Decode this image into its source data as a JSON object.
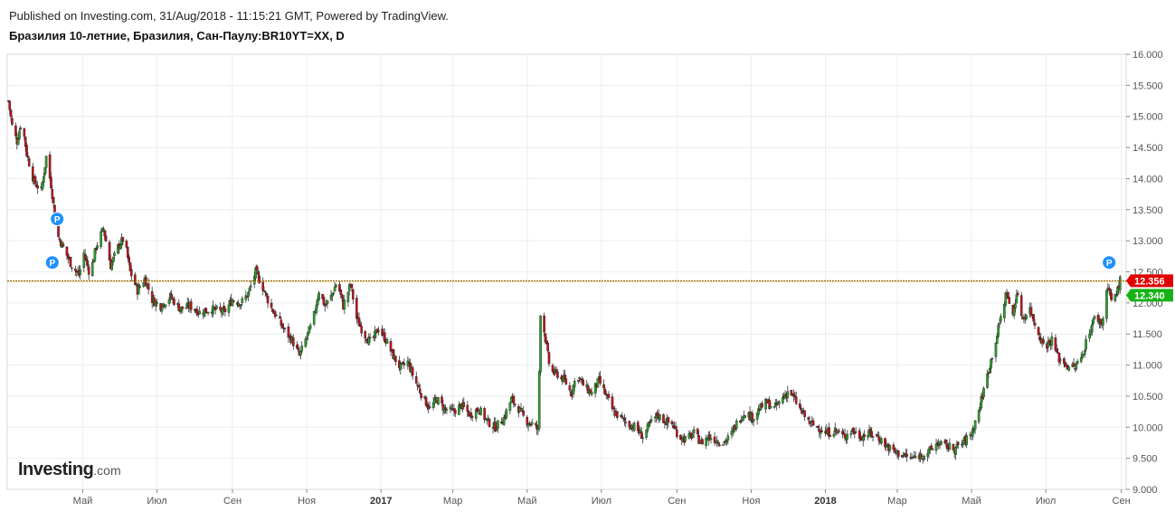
{
  "header": {
    "published": "Published on Investing.com, 31/Aug/2018 - 11:15:21 GMT, Powered by TradingView.",
    "symbol": "Бразилия 10-летние, Бразилия, Сан-Паулу:BR10YT=XX, D"
  },
  "logo": {
    "main": "Investing",
    "suffix": ".com"
  },
  "colors": {
    "up": "#2ca02c",
    "down": "#c0131e",
    "wick": "#333333",
    "grid": "#eeeeee",
    "last_price_bg": "#e00000",
    "ref_price_bg": "#16b216",
    "marker": "#1e90ff",
    "hline": "#8a5a00"
  },
  "chart_data": {
    "type": "candlestick",
    "title": "",
    "xlabel": "",
    "ylabel": "",
    "ylim": [
      9.0,
      16.0
    ],
    "y_ticks": [
      "16.000",
      "15.500",
      "15.000",
      "14.500",
      "14.000",
      "13.500",
      "13.000",
      "12.500",
      "12.000",
      "11.500",
      "11.000",
      "10.500",
      "10.000",
      "9.500",
      "9.000"
    ],
    "x_ticks": [
      {
        "label": "Май",
        "date": "2016-05-01"
      },
      {
        "label": "Июл",
        "date": "2016-07-01"
      },
      {
        "label": "Сен",
        "date": "2016-09-01"
      },
      {
        "label": "Ноя",
        "date": "2016-11-01"
      },
      {
        "label": "2017",
        "date": "2017-01-01",
        "bold": true
      },
      {
        "label": "Мар",
        "date": "2017-03-01"
      },
      {
        "label": "Май",
        "date": "2017-05-01"
      },
      {
        "label": "Июл",
        "date": "2017-07-01"
      },
      {
        "label": "Сен",
        "date": "2017-09-01"
      },
      {
        "label": "Ноя",
        "date": "2017-11-01"
      },
      {
        "label": "2018",
        "date": "2018-01-01",
        "bold": true
      },
      {
        "label": "Мар",
        "date": "2018-03-01"
      },
      {
        "label": "Май",
        "date": "2018-05-01"
      },
      {
        "label": "Июл",
        "date": "2018-07-01"
      },
      {
        "label": "Сен",
        "date": "2018-09-01"
      }
    ],
    "x_range": [
      "2016-02-29",
      "2018-09-05"
    ],
    "last_price": {
      "value": 12.356,
      "label": "12.356"
    },
    "ref_price": {
      "value": 12.34,
      "label": "12.340"
    },
    "markers": [
      {
        "date": "2016-04-10",
        "value": 13.35,
        "label": "P"
      },
      {
        "date": "2016-04-06",
        "value": 12.65,
        "label": "P"
      },
      {
        "date": "2018-08-22",
        "value": 12.65,
        "label": "P"
      }
    ],
    "path": [
      [
        "2016-03-01",
        15.25
      ],
      [
        "2016-03-04",
        14.85
      ],
      [
        "2016-03-08",
        14.6
      ],
      [
        "2016-03-12",
        14.95
      ],
      [
        "2016-03-16",
        14.4
      ],
      [
        "2016-03-22",
        13.95
      ],
      [
        "2016-03-28",
        13.8
      ],
      [
        "2016-04-01",
        14.35
      ],
      [
        "2016-04-05",
        13.9
      ],
      [
        "2016-04-10",
        13.1
      ],
      [
        "2016-04-16",
        12.85
      ],
      [
        "2016-04-22",
        12.6
      ],
      [
        "2016-04-28",
        12.45
      ],
      [
        "2016-05-02",
        12.8
      ],
      [
        "2016-05-07",
        12.45
      ],
      [
        "2016-05-12",
        12.9
      ],
      [
        "2016-05-18",
        13.2
      ],
      [
        "2016-05-24",
        12.6
      ],
      [
        "2016-05-30",
        12.9
      ],
      [
        "2016-06-04",
        13.05
      ],
      [
        "2016-06-09",
        12.5
      ],
      [
        "2016-06-15",
        12.2
      ],
      [
        "2016-06-21",
        12.4
      ],
      [
        "2016-06-27",
        12.05
      ],
      [
        "2016-07-04",
        11.95
      ],
      [
        "2016-07-12",
        12.1
      ],
      [
        "2016-07-20",
        11.9
      ],
      [
        "2016-07-28",
        11.95
      ],
      [
        "2016-08-05",
        11.85
      ],
      [
        "2016-08-15",
        11.9
      ],
      [
        "2016-08-25",
        11.85
      ],
      [
        "2016-09-01",
        12.05
      ],
      [
        "2016-09-08",
        12.0
      ],
      [
        "2016-09-14",
        12.15
      ],
      [
        "2016-09-20",
        12.5
      ],
      [
        "2016-09-26",
        12.25
      ],
      [
        "2016-10-02",
        11.95
      ],
      [
        "2016-10-08",
        11.75
      ],
      [
        "2016-10-14",
        11.55
      ],
      [
        "2016-10-20",
        11.4
      ],
      [
        "2016-10-26",
        11.15
      ],
      [
        "2016-11-01",
        11.45
      ],
      [
        "2016-11-06",
        11.7
      ],
      [
        "2016-11-11",
        12.2
      ],
      [
        "2016-11-16",
        11.95
      ],
      [
        "2016-11-21",
        12.1
      ],
      [
        "2016-11-26",
        12.35
      ],
      [
        "2016-12-01",
        11.95
      ],
      [
        "2016-12-07",
        12.3
      ],
      [
        "2016-12-12",
        11.75
      ],
      [
        "2016-12-18",
        11.5
      ],
      [
        "2016-12-24",
        11.35
      ],
      [
        "2016-12-30",
        11.6
      ],
      [
        "2017-01-05",
        11.4
      ],
      [
        "2017-01-11",
        11.15
      ],
      [
        "2017-01-17",
        10.95
      ],
      [
        "2017-01-23",
        11.05
      ],
      [
        "2017-01-29",
        10.75
      ],
      [
        "2017-02-04",
        10.5
      ],
      [
        "2017-02-10",
        10.3
      ],
      [
        "2017-02-16",
        10.45
      ],
      [
        "2017-02-22",
        10.3
      ],
      [
        "2017-03-01",
        10.25
      ],
      [
        "2017-03-08",
        10.35
      ],
      [
        "2017-03-15",
        10.2
      ],
      [
        "2017-03-22",
        10.3
      ],
      [
        "2017-03-29",
        10.1
      ],
      [
        "2017-04-05",
        10.0
      ],
      [
        "2017-04-12",
        10.15
      ],
      [
        "2017-04-18",
        10.45
      ],
      [
        "2017-04-24",
        10.3
      ],
      [
        "2017-04-30",
        10.1
      ],
      [
        "2017-05-06",
        10.05
      ],
      [
        "2017-05-10",
        9.95
      ],
      [
        "2017-05-12",
        11.85
      ],
      [
        "2017-05-15",
        11.55
      ],
      [
        "2017-05-20",
        10.9
      ],
      [
        "2017-05-26",
        10.85
      ],
      [
        "2017-06-01",
        10.75
      ],
      [
        "2017-06-06",
        10.55
      ],
      [
        "2017-06-11",
        10.85
      ],
      [
        "2017-06-17",
        10.65
      ],
      [
        "2017-06-23",
        10.55
      ],
      [
        "2017-06-29",
        10.75
      ],
      [
        "2017-07-05",
        10.5
      ],
      [
        "2017-07-11",
        10.25
      ],
      [
        "2017-07-17",
        10.15
      ],
      [
        "2017-07-23",
        10.05
      ],
      [
        "2017-07-29",
        10.0
      ],
      [
        "2017-08-04",
        9.85
      ],
      [
        "2017-08-10",
        10.05
      ],
      [
        "2017-08-16",
        10.2
      ],
      [
        "2017-08-22",
        10.1
      ],
      [
        "2017-08-28",
        10.05
      ],
      [
        "2017-09-03",
        9.85
      ],
      [
        "2017-09-09",
        9.8
      ],
      [
        "2017-09-15",
        9.9
      ],
      [
        "2017-09-21",
        9.75
      ],
      [
        "2017-09-27",
        9.85
      ],
      [
        "2017-10-03",
        9.8
      ],
      [
        "2017-10-09",
        9.75
      ],
      [
        "2017-10-15",
        9.85
      ],
      [
        "2017-10-21",
        10.1
      ],
      [
        "2017-10-27",
        10.25
      ],
      [
        "2017-11-02",
        10.15
      ],
      [
        "2017-11-08",
        10.3
      ],
      [
        "2017-11-14",
        10.4
      ],
      [
        "2017-11-20",
        10.3
      ],
      [
        "2017-11-26",
        10.45
      ],
      [
        "2017-12-02",
        10.6
      ],
      [
        "2017-12-08",
        10.4
      ],
      [
        "2017-12-14",
        10.2
      ],
      [
        "2017-12-20",
        10.05
      ],
      [
        "2017-12-26",
        10.0
      ],
      [
        "2018-01-02",
        9.9
      ],
      [
        "2018-01-09",
        9.95
      ],
      [
        "2018-01-16",
        9.85
      ],
      [
        "2018-01-23",
        9.95
      ],
      [
        "2018-01-30",
        9.85
      ],
      [
        "2018-02-06",
        9.9
      ],
      [
        "2018-02-13",
        9.85
      ],
      [
        "2018-02-20",
        9.7
      ],
      [
        "2018-02-27",
        9.6
      ],
      [
        "2018-03-06",
        9.55
      ],
      [
        "2018-03-13",
        9.5
      ],
      [
        "2018-03-20",
        9.55
      ],
      [
        "2018-03-27",
        9.6
      ],
      [
        "2018-04-03",
        9.75
      ],
      [
        "2018-04-10",
        9.7
      ],
      [
        "2018-04-17",
        9.65
      ],
      [
        "2018-04-24",
        9.75
      ],
      [
        "2018-05-01",
        9.9
      ],
      [
        "2018-05-06",
        10.2
      ],
      [
        "2018-05-11",
        10.6
      ],
      [
        "2018-05-16",
        11.0
      ],
      [
        "2018-05-21",
        11.4
      ],
      [
        "2018-05-26",
        11.85
      ],
      [
        "2018-05-30",
        12.2
      ],
      [
        "2018-06-03",
        11.7
      ],
      [
        "2018-06-07",
        12.15
      ],
      [
        "2018-06-12",
        11.75
      ],
      [
        "2018-06-18",
        11.9
      ],
      [
        "2018-06-24",
        11.55
      ],
      [
        "2018-06-30",
        11.3
      ],
      [
        "2018-07-06",
        11.4
      ],
      [
        "2018-07-12",
        11.1
      ],
      [
        "2018-07-18",
        11.0
      ],
      [
        "2018-07-24",
        10.95
      ],
      [
        "2018-07-30",
        11.1
      ],
      [
        "2018-08-05",
        11.5
      ],
      [
        "2018-08-11",
        11.8
      ],
      [
        "2018-08-16",
        11.65
      ],
      [
        "2018-08-21",
        12.3
      ],
      [
        "2018-08-25",
        11.95
      ],
      [
        "2018-08-31",
        12.36
      ]
    ]
  }
}
